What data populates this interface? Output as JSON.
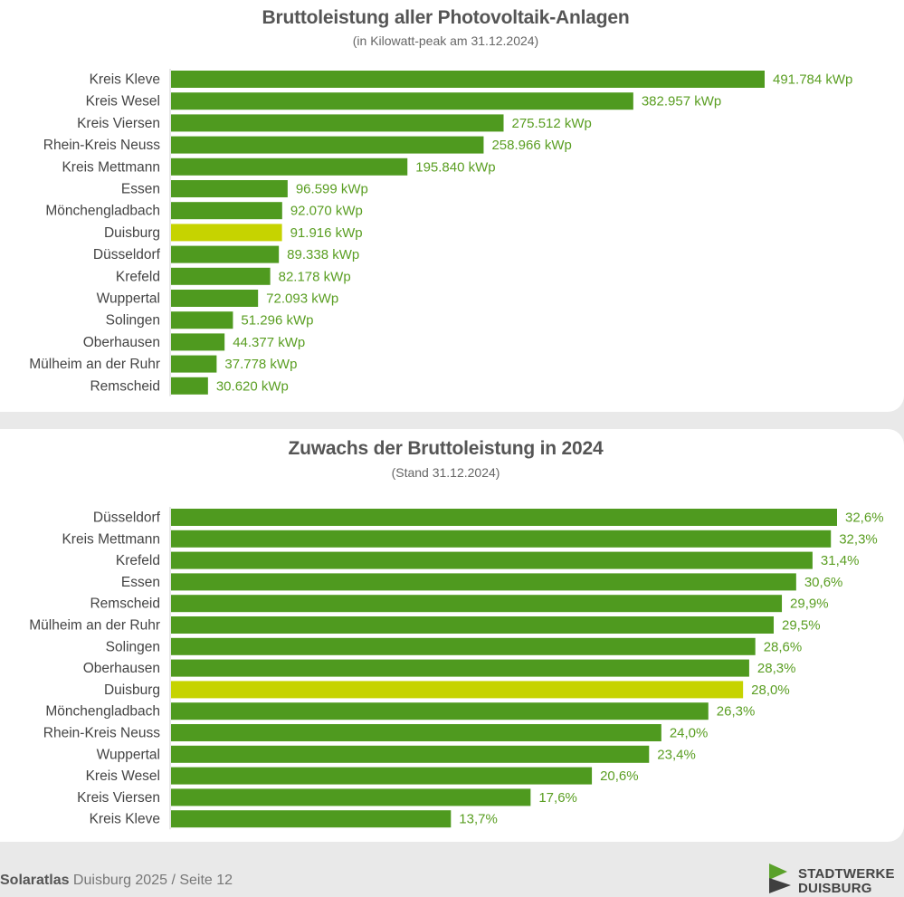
{
  "colors": {
    "bar": "#4f9a1f",
    "highlight": "#c6d300",
    "label": "#5a9e22",
    "axis_text": "#444444"
  },
  "chart_data": [
    {
      "type": "bar",
      "orientation": "horizontal",
      "title": "Bruttoleistung aller Photovoltaik-Anlagen",
      "subtitle": "(in Kilowatt-peak am 31.12.2024)",
      "highlight_category": "Duisburg",
      "grid": false,
      "categories": [
        "Kreis Kleve",
        "Kreis Wesel",
        "Kreis Viersen",
        "Rhein-Kreis Neuss",
        "Kreis Mettmann",
        "Essen",
        "Mönchengladbach",
        "Duisburg",
        "Düsseldorf",
        "Krefeld",
        "Wuppertal",
        "Solingen",
        "Oberhausen",
        "Mülheim an der Ruhr",
        "Remscheid"
      ],
      "values": [
        491784,
        382957,
        275512,
        258966,
        195840,
        96599,
        92070,
        91916,
        89338,
        82178,
        72093,
        51296,
        44377,
        37778,
        30620
      ],
      "value_labels": [
        "491.784 kWp",
        "382.957 kWp",
        "275.512 kWp",
        "258.966 kWp",
        "195.840 kWp",
        "96.599 kWp",
        "92.070 kWp",
        "91.916 kWp",
        "89.338 kWp",
        "82.178 kWp",
        "72.093 kWp",
        "51.296 kWp",
        "44.377 kWp",
        "37.778 kWp",
        "30.620 kWp"
      ],
      "xlim": [
        0,
        491784
      ]
    },
    {
      "type": "bar",
      "orientation": "horizontal",
      "title": "Zuwachs der Bruttoleistung in 2024",
      "subtitle": "(Stand 31.12.2024)",
      "highlight_category": "Duisburg",
      "grid": false,
      "categories": [
        "Düsseldorf",
        "Kreis Mettmann",
        "Krefeld",
        "Essen",
        "Remscheid",
        "Mülheim an der Ruhr",
        "Solingen",
        "Oberhausen",
        "Duisburg",
        "Mönchengladbach",
        "Rhein-Kreis Neuss",
        "Wuppertal",
        "Kreis Wesel",
        "Kreis Viersen",
        "Kreis Kleve"
      ],
      "values": [
        32.6,
        32.3,
        31.4,
        30.6,
        29.9,
        29.5,
        28.6,
        28.3,
        28.0,
        26.3,
        24.0,
        23.4,
        20.6,
        17.6,
        13.7
      ],
      "value_labels": [
        "32,6%",
        "32,3%",
        "31,4%",
        "30,6%",
        "29,9%",
        "29,5%",
        "28,6%",
        "28,3%",
        "28,0%",
        "26,3%",
        "24,0%",
        "23,4%",
        "20,6%",
        "17,6%",
        "13,7%"
      ],
      "xlim": [
        0,
        32.6
      ]
    }
  ],
  "footer": {
    "brand_bold": "Solaratlas",
    "brand_rest": " Duisburg 2025 / Seite 12"
  },
  "logo": {
    "line1": "STADTWERKE",
    "line2": "DUISBURG"
  }
}
